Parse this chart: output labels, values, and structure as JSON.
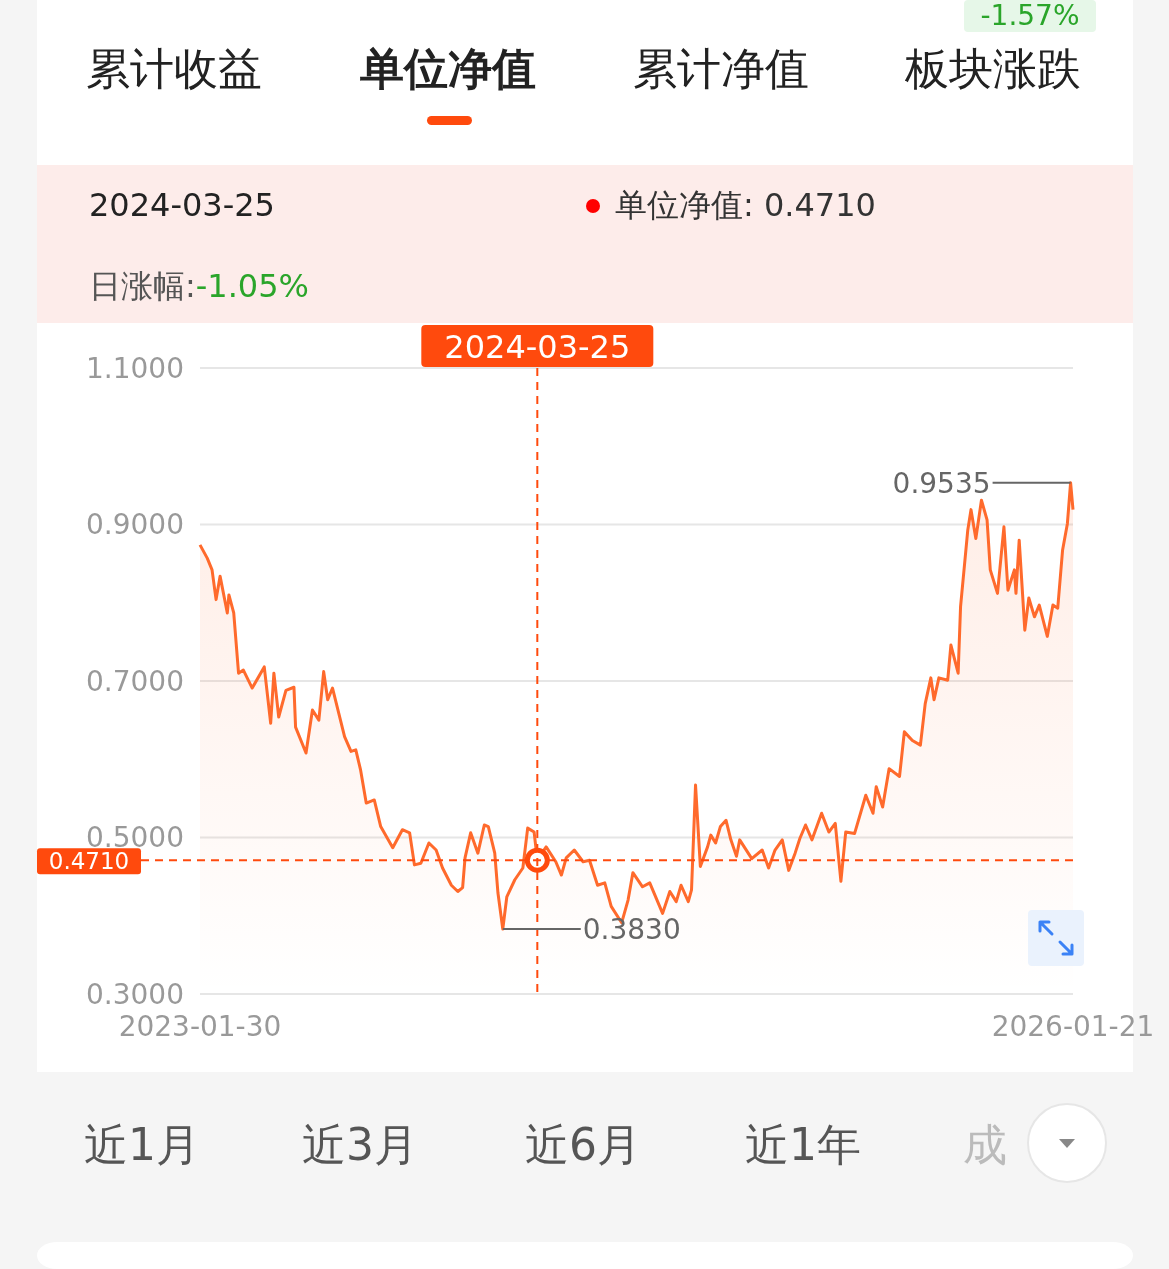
{
  "chart_data": {
    "type": "area",
    "xlim": [
      "2023-01-30",
      "2026-01-21"
    ],
    "xticks": [
      {
        "value": "2023-01-30",
        "label": "2023-01-30"
      },
      {
        "value": "2026-01-21",
        "label": "2026-01-21"
      }
    ],
    "ylim": [
      0.3,
      1.1
    ],
    "yticks": [
      {
        "value": 0.3,
        "label": "0.3000"
      },
      {
        "value": 0.5,
        "label": "0.5000"
      },
      {
        "value": 0.7,
        "label": "0.7000"
      },
      {
        "value": 0.9,
        "label": "0.9000"
      },
      {
        "value": 1.1,
        "label": "1.1000"
      }
    ],
    "grid": "y",
    "series": [
      {
        "color": "#ff6a2c",
        "x": [
          "2023-01-30",
          "2023-02-08",
          "2023-02-14",
          "2023-02-19",
          "2023-02-24",
          "2023-03-05",
          "2023-03-07",
          "2023-03-13",
          "2023-03-19",
          "2023-03-25",
          "2023-04-05",
          "2023-04-20",
          "2023-04-28",
          "2023-05-02",
          "2023-05-08",
          "2023-05-17",
          "2023-05-27",
          "2023-05-29",
          "2023-06-11",
          "2023-06-19",
          "2023-06-27",
          "2023-07-03",
          "2023-07-08",
          "2023-07-14",
          "2023-07-29",
          "2023-08-06",
          "2023-08-12",
          "2023-08-18",
          "2023-08-25",
          "2023-09-04",
          "2023-09-12",
          "2023-09-27",
          "2023-10-09",
          "2023-10-18",
          "2023-10-24",
          "2023-11-01",
          "2023-11-11",
          "2023-11-20",
          "2023-11-28",
          "2023-12-09",
          "2023-12-17",
          "2023-12-23",
          "2023-12-26",
          "2024-01-02",
          "2024-01-11",
          "2024-01-19",
          "2024-01-24",
          "2024-02-01",
          "2024-02-05",
          "2024-02-11",
          "2024-02-16",
          "2024-02-26",
          "2024-03-07",
          "2024-03-13",
          "2024-03-21",
          "2024-03-25",
          "2024-04-05",
          "2024-04-17",
          "2024-04-24",
          "2024-04-30",
          "2024-05-10",
          "2024-05-21",
          "2024-05-29",
          "2024-06-08",
          "2024-06-17",
          "2024-06-25",
          "2024-07-08",
          "2024-07-16",
          "2024-07-22",
          "2024-08-03",
          "2024-08-12",
          "2024-08-28",
          "2024-09-06",
          "2024-09-14",
          "2024-09-20",
          "2024-09-29",
          "2024-10-03",
          "2024-10-08",
          "2024-10-14",
          "2024-10-23",
          "2024-10-27",
          "2024-11-02",
          "2024-11-08",
          "2024-11-15",
          "2024-11-21",
          "2024-11-28",
          "2024-12-02",
          "2024-12-17",
          "2024-12-30",
          "2025-01-07",
          "2025-01-15",
          "2025-01-24",
          "2025-02-01",
          "2025-02-09",
          "2025-02-15",
          "2025-02-22",
          "2025-03-02",
          "2025-03-14",
          "2025-03-23",
          "2025-03-31",
          "2025-04-07",
          "2025-04-13",
          "2025-04-24",
          "2025-05-08",
          "2025-05-17",
          "2025-05-21",
          "2025-05-29",
          "2025-06-06",
          "2025-06-19",
          "2025-06-25",
          "2025-07-05",
          "2025-07-15",
          "2025-07-21",
          "2025-07-28",
          "2025-08-01",
          "2025-08-07",
          "2025-08-18",
          "2025-08-22",
          "2025-08-31",
          "2025-09-03",
          "2025-09-12",
          "2025-09-16",
          "2025-09-22",
          "2025-09-29",
          "2025-10-06",
          "2025-10-10",
          "2025-10-19",
          "2025-10-27",
          "2025-11-01",
          "2025-11-09",
          "2025-11-11",
          "2025-11-15",
          "2025-11-22",
          "2025-11-27",
          "2025-12-04",
          "2025-12-10",
          "2025-12-20",
          "2025-12-27",
          "2026-01-02",
          "2026-01-08",
          "2026-01-14",
          "2026-01-18",
          "2026-01-21"
        ],
        "values": [
          0.874,
          0.857,
          0.842,
          0.804,
          0.834,
          0.787,
          0.81,
          0.787,
          0.71,
          0.714,
          0.691,
          0.718,
          0.646,
          0.71,
          0.654,
          0.688,
          0.692,
          0.641,
          0.608,
          0.663,
          0.65,
          0.712,
          0.676,
          0.691,
          0.629,
          0.61,
          0.612,
          0.586,
          0.544,
          0.548,
          0.514,
          0.487,
          0.51,
          0.506,
          0.465,
          0.467,
          0.493,
          0.484,
          0.461,
          0.439,
          0.431,
          0.436,
          0.474,
          0.506,
          0.48,
          0.516,
          0.514,
          0.48,
          0.429,
          0.383,
          0.424,
          0.446,
          0.461,
          0.512,
          0.507,
          0.471,
          0.488,
          0.469,
          0.452,
          0.474,
          0.484,
          0.469,
          0.471,
          0.439,
          0.442,
          0.412,
          0.391,
          0.42,
          0.455,
          0.437,
          0.442,
          0.403,
          0.431,
          0.418,
          0.439,
          0.418,
          0.433,
          0.567,
          0.463,
          0.488,
          0.503,
          0.493,
          0.514,
          0.522,
          0.497,
          0.476,
          0.497,
          0.473,
          0.484,
          0.461,
          0.484,
          0.497,
          0.458,
          0.48,
          0.499,
          0.516,
          0.497,
          0.531,
          0.507,
          0.518,
          0.444,
          0.507,
          0.505,
          0.554,
          0.531,
          0.565,
          0.539,
          0.588,
          0.578,
          0.635,
          0.624,
          0.618,
          0.671,
          0.704,
          0.676,
          0.704,
          0.701,
          0.746,
          0.71,
          0.795,
          0.893,
          0.919,
          0.882,
          0.931,
          0.906,
          0.842,
          0.812,
          0.897,
          0.816,
          0.842,
          0.812,
          0.88,
          0.765,
          0.806,
          0.782,
          0.797,
          0.757,
          0.797,
          0.793,
          0.867,
          0.901,
          0.9535,
          0.919
        ]
      },
      {
        "type": "scatter",
        "color": "#ff4a0d",
        "x": [
          "2024-03-25"
        ],
        "values": [
          0.471
        ]
      }
    ],
    "ref_lines": [
      {
        "axis": "x",
        "value": "2024-03-25",
        "label": "2024-03-25",
        "color": "#ff4a0d",
        "line_style": "dashed"
      },
      {
        "axis": "y",
        "value": 0.471,
        "label": "0.4710",
        "color": "#ff4a0d",
        "line_style": "dashed"
      }
    ],
    "annotations": [
      "累计收益",
      "单位净值",
      "累计净值",
      "板块涨跌",
      "-1.57%",
      "2024-03-25",
      "单位净值: 0.4710",
      "日涨幅:",
      "-1.05%",
      "近1月",
      "近3月",
      "近6月",
      "近1年",
      "成",
      {
        "text": "0.9535",
        "x": "2026-01-18",
        "y": 0.9535
      },
      {
        "text": "0.3830",
        "x": "2024-02-11",
        "y": 0.383
      }
    ]
  }
}
